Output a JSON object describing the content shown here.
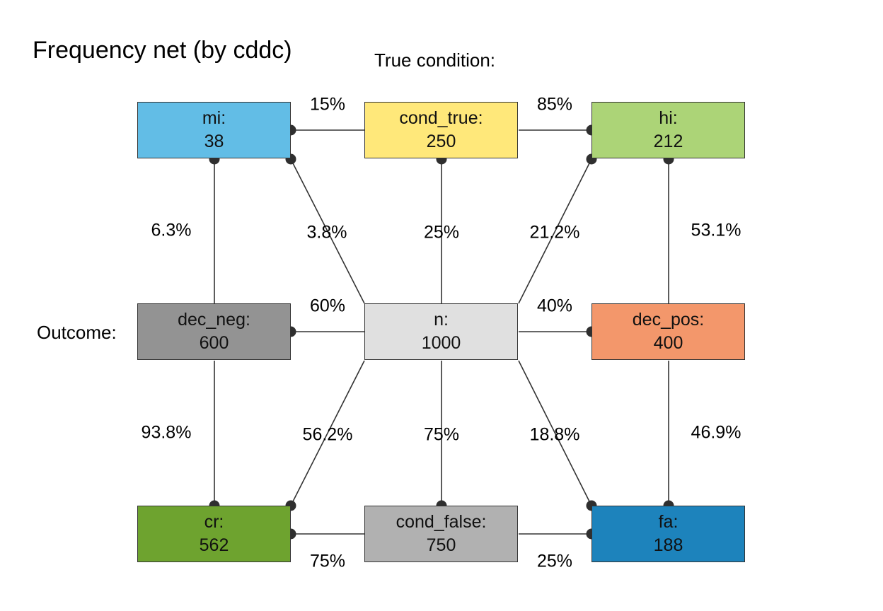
{
  "title": "Frequency net (by cddc)",
  "labels": {
    "true_condition": "True condition:",
    "outcome": "Outcome:"
  },
  "nodes": {
    "mi": {
      "name": "mi:",
      "value": "38",
      "color": "#62bde6"
    },
    "cond_true": {
      "name": "cond_true:",
      "value": "250",
      "color": "#ffe87a"
    },
    "hi": {
      "name": "hi:",
      "value": "212",
      "color": "#acd477"
    },
    "dec_neg": {
      "name": "dec_neg:",
      "value": "600",
      "color": "#939393"
    },
    "n": {
      "name": "n:",
      "value": "1000",
      "color": "#e0e0e0"
    },
    "dec_pos": {
      "name": "dec_pos:",
      "value": "400",
      "color": "#f3976b"
    },
    "cr": {
      "name": "cr:",
      "value": "562",
      "color": "#6ea32f"
    },
    "cond_false": {
      "name": "cond_false:",
      "value": "750",
      "color": "#b1b1b1"
    },
    "fa": {
      "name": "fa:",
      "value": "188",
      "color": "#1d83bc"
    }
  },
  "percentages": {
    "mi_cond_true": "15%",
    "cond_true_hi": "85%",
    "mi_dec_neg": "6.3%",
    "mi_n": "3.8%",
    "cond_true_n": "25%",
    "hi_n": "21.2%",
    "hi_dec_pos": "53.1%",
    "dec_neg_n": "60%",
    "n_dec_pos": "40%",
    "dec_neg_cr": "93.8%",
    "cr_n": "56.2%",
    "n_cond_false": "75%",
    "n_fa": "18.8%",
    "dec_pos_fa": "46.9%",
    "cr_cond_false": "75%",
    "cond_false_fa": "25%"
  }
}
